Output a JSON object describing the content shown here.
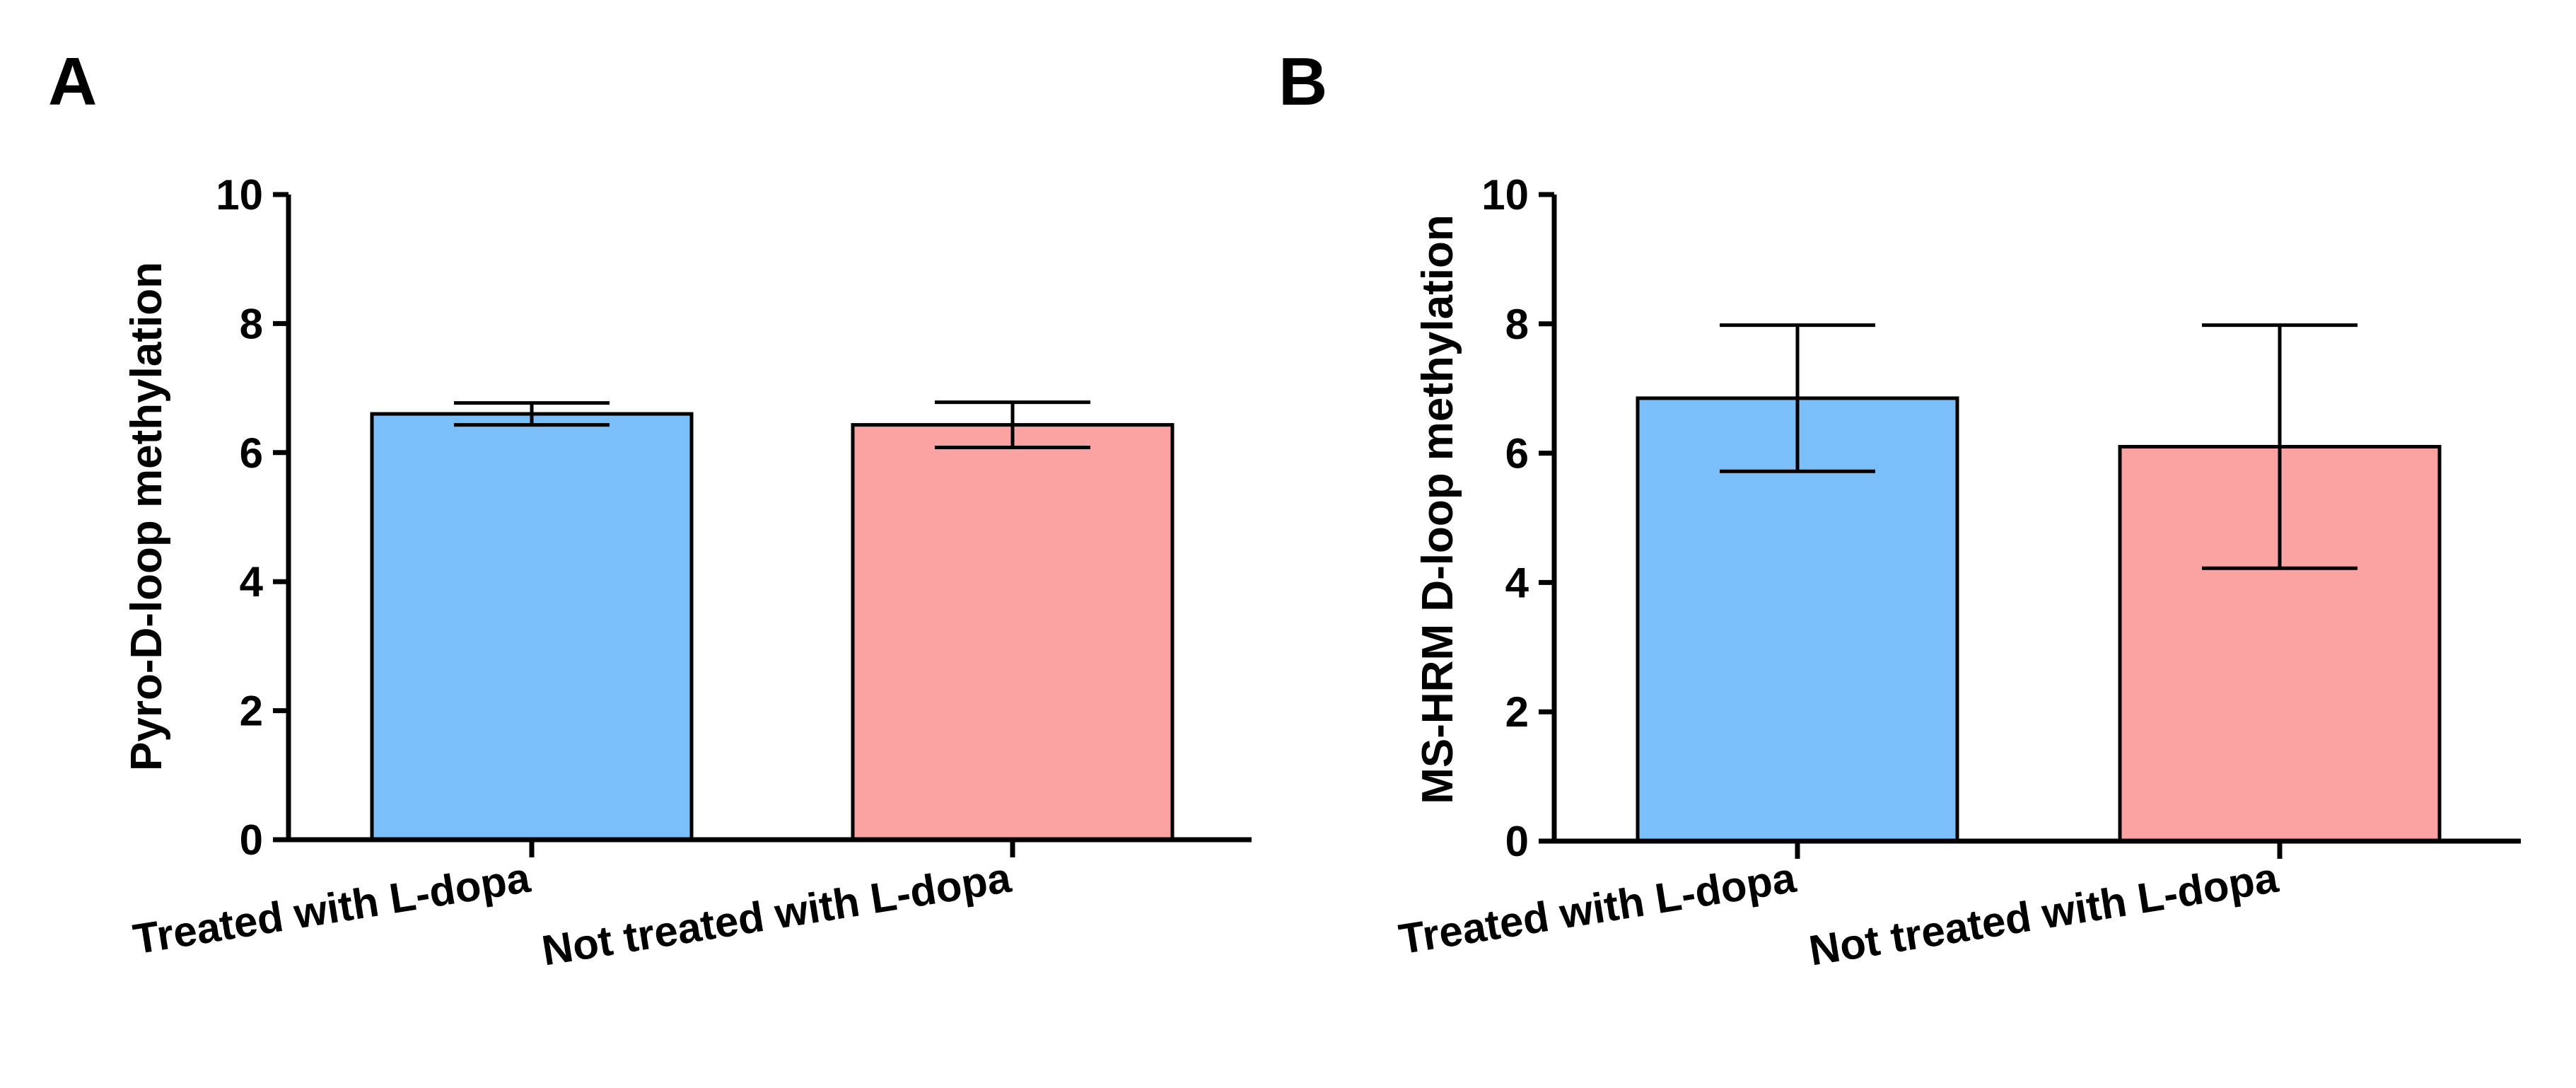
{
  "chart_data": [
    {
      "panel": "A",
      "type": "bar",
      "categories": [
        "Treated with L-dopa",
        "Not treated with L-dopa"
      ],
      "values": [
        6.6,
        6.43
      ],
      "error": [
        0.17,
        0.35
      ],
      "colors": [
        "#7BBFFA",
        "#FBA3A3"
      ],
      "title": "",
      "xlabel": "",
      "ylabel": "Pyro-D-loop methylation",
      "ylim": [
        0,
        10
      ],
      "yticks": [
        "0",
        "2",
        "4",
        "6",
        "8",
        "10"
      ],
      "grid": false
    },
    {
      "panel": "B",
      "type": "bar",
      "categories": [
        "Treated with L-dopa",
        "Not treated with L-dopa"
      ],
      "values": [
        6.85,
        6.1
      ],
      "error": [
        1.13,
        1.88
      ],
      "colors": [
        "#7BBFFA",
        "#FBA3A3"
      ],
      "title": "",
      "xlabel": "",
      "ylabel": "MS-HRM D-loop methylation",
      "ylim": [
        0,
        10
      ],
      "yticks": [
        "0",
        "2",
        "4",
        "6",
        "8",
        "10"
      ],
      "grid": false
    }
  ]
}
